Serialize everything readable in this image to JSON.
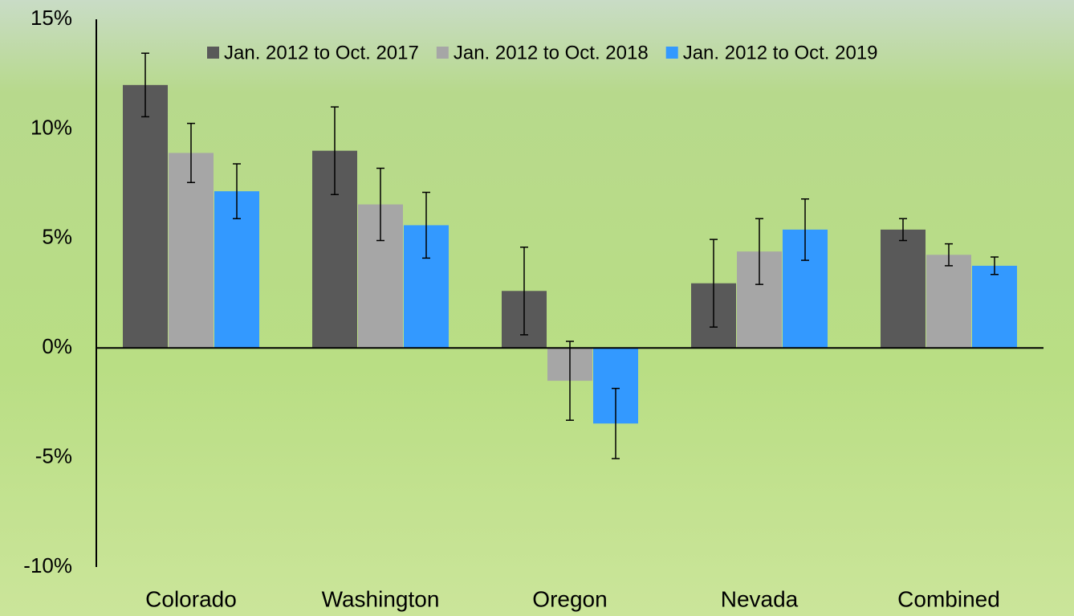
{
  "chart_data": {
    "type": "bar",
    "categories": [
      "Colorado",
      "Washington",
      "Oregon",
      "Nevada",
      "Combined"
    ],
    "series": [
      {
        "name": "Jan. 2012 to Oct. 2017",
        "color": "#595959",
        "values": [
          12.0,
          9.0,
          2.6,
          2.95,
          5.4
        ],
        "errors": [
          1.45,
          2.0,
          2.0,
          2.0,
          0.5
        ]
      },
      {
        "name": "Jan. 2012 to Oct. 2018",
        "color": "#a6a6a6",
        "values": [
          8.9,
          6.55,
          -1.5,
          4.4,
          4.25
        ],
        "errors": [
          1.35,
          1.65,
          1.8,
          1.5,
          0.5
        ]
      },
      {
        "name": "Jan. 2012 to Oct. 2019",
        "color": "#3399ff",
        "values": [
          7.15,
          5.6,
          -3.45,
          5.4,
          3.75
        ],
        "errors": [
          1.25,
          1.5,
          1.6,
          1.4,
          0.4
        ]
      }
    ],
    "ylim": [
      -10,
      15
    ],
    "yticks": [
      {
        "value": -10,
        "label": "-10%"
      },
      {
        "value": -5,
        "label": "-5%"
      },
      {
        "value": 0,
        "label": "0%"
      },
      {
        "value": 5,
        "label": "5%"
      },
      {
        "value": 10,
        "label": "10%"
      },
      {
        "value": 15,
        "label": "15%"
      }
    ],
    "legend": "top"
  }
}
